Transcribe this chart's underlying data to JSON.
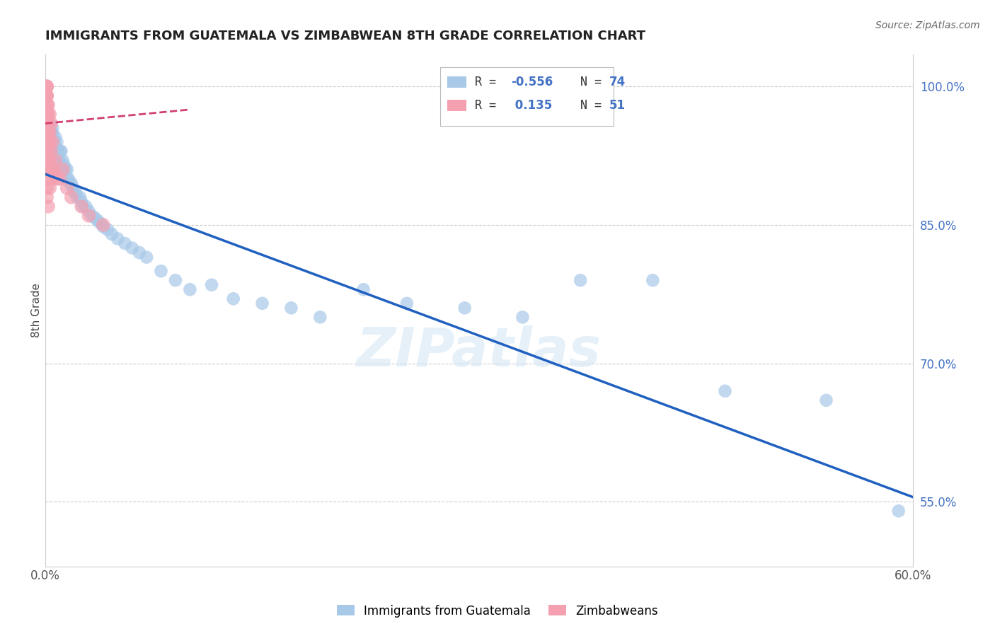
{
  "title": "IMMIGRANTS FROM GUATEMALA VS ZIMBABWEAN 8TH GRADE CORRELATION CHART",
  "source": "Source: ZipAtlas.com",
  "ylabel": "8th Grade",
  "xlim": [
    0.0,
    0.6
  ],
  "ylim": [
    0.48,
    1.035
  ],
  "x_ticks": [
    0.0,
    0.1,
    0.2,
    0.3,
    0.4,
    0.5,
    0.6
  ],
  "x_tick_labels": [
    "0.0%",
    "",
    "",
    "",
    "",
    "",
    "60.0%"
  ],
  "y_ticks": [
    0.55,
    0.7,
    0.85,
    1.0
  ],
  "y_tick_labels": [
    "55.0%",
    "70.0%",
    "85.0%",
    "100.0%"
  ],
  "blue_color": "#a8c8e8",
  "pink_color": "#f4a0b0",
  "blue_line_color": "#2060c0",
  "pink_line_color": "#d04070",
  "watermark": "ZIPatlas",
  "blue_scatter_x": [
    0.002,
    0.003,
    0.003,
    0.004,
    0.004,
    0.004,
    0.005,
    0.005,
    0.005,
    0.005,
    0.006,
    0.006,
    0.006,
    0.007,
    0.007,
    0.007,
    0.007,
    0.008,
    0.008,
    0.008,
    0.009,
    0.009,
    0.01,
    0.01,
    0.01,
    0.011,
    0.011,
    0.012,
    0.012,
    0.013,
    0.014,
    0.015,
    0.015,
    0.016,
    0.017,
    0.018,
    0.019,
    0.02,
    0.021,
    0.022,
    0.024,
    0.025,
    0.026,
    0.028,
    0.03,
    0.032,
    0.034,
    0.036,
    0.038,
    0.04,
    0.043,
    0.046,
    0.05,
    0.055,
    0.06,
    0.065,
    0.07,
    0.08,
    0.09,
    0.1,
    0.115,
    0.13,
    0.15,
    0.17,
    0.19,
    0.22,
    0.25,
    0.29,
    0.33,
    0.37,
    0.42,
    0.47,
    0.54,
    0.59
  ],
  "blue_scatter_y": [
    0.94,
    0.96,
    0.955,
    0.95,
    0.945,
    0.93,
    0.955,
    0.95,
    0.945,
    0.93,
    0.94,
    0.935,
    0.92,
    0.945,
    0.935,
    0.93,
    0.92,
    0.94,
    0.93,
    0.92,
    0.93,
    0.915,
    0.93,
    0.92,
    0.91,
    0.93,
    0.915,
    0.92,
    0.91,
    0.915,
    0.91,
    0.91,
    0.9,
    0.9,
    0.895,
    0.895,
    0.89,
    0.885,
    0.885,
    0.88,
    0.88,
    0.875,
    0.87,
    0.87,
    0.865,
    0.86,
    0.858,
    0.855,
    0.852,
    0.848,
    0.845,
    0.84,
    0.835,
    0.83,
    0.825,
    0.82,
    0.815,
    0.8,
    0.79,
    0.78,
    0.785,
    0.77,
    0.765,
    0.76,
    0.75,
    0.78,
    0.765,
    0.76,
    0.75,
    0.79,
    0.79,
    0.67,
    0.66,
    0.54
  ],
  "pink_scatter_x": [
    0.001,
    0.001,
    0.001,
    0.001,
    0.001,
    0.001,
    0.001,
    0.001,
    0.001,
    0.001,
    0.001,
    0.001,
    0.001,
    0.001,
    0.001,
    0.001,
    0.001,
    0.001,
    0.001,
    0.001,
    0.002,
    0.002,
    0.002,
    0.002,
    0.002,
    0.002,
    0.002,
    0.002,
    0.002,
    0.002,
    0.003,
    0.003,
    0.003,
    0.003,
    0.003,
    0.003,
    0.004,
    0.004,
    0.004,
    0.005,
    0.005,
    0.006,
    0.007,
    0.008,
    0.01,
    0.012,
    0.015,
    0.018,
    0.025,
    0.03,
    0.04
  ],
  "pink_scatter_y": [
    1.0,
    1.0,
    1.0,
    0.99,
    0.99,
    0.99,
    0.98,
    0.98,
    0.97,
    0.97,
    0.96,
    0.96,
    0.95,
    0.95,
    0.94,
    0.93,
    0.92,
    0.91,
    0.89,
    0.88,
    0.98,
    0.97,
    0.96,
    0.95,
    0.94,
    0.93,
    0.92,
    0.91,
    0.9,
    0.87,
    0.97,
    0.95,
    0.94,
    0.92,
    0.91,
    0.89,
    0.96,
    0.93,
    0.91,
    0.94,
    0.9,
    0.91,
    0.92,
    0.9,
    0.9,
    0.91,
    0.89,
    0.88,
    0.87,
    0.86,
    0.85
  ],
  "blue_line_x0": 0.0,
  "blue_line_y0": 0.905,
  "blue_line_x1": 0.6,
  "blue_line_y1": 0.555,
  "pink_line_x0": 0.0,
  "pink_line_y0": 0.96,
  "pink_line_x1": 0.1,
  "pink_line_y1": 0.975
}
